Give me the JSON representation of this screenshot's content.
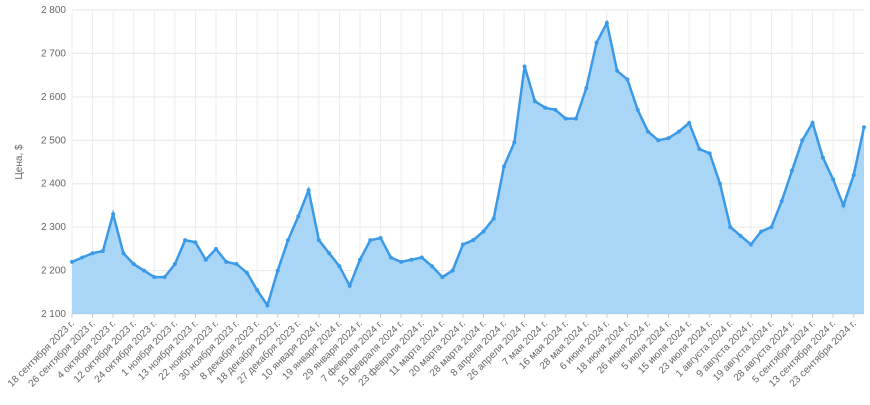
{
  "chart_data": {
    "type": "area",
    "y_label": "Цена, $",
    "color": "#3b9ae8",
    "fill_color": "#a9d5f6",
    "grid": true,
    "ylim": [
      2100,
      2800
    ],
    "yticks": [
      {
        "value": 2100,
        "label": "2 100"
      },
      {
        "value": 2200,
        "label": "2 200"
      },
      {
        "value": 2300,
        "label": "2 300"
      },
      {
        "value": 2400,
        "label": "2 400"
      },
      {
        "value": 2500,
        "label": "2 500"
      },
      {
        "value": 2600,
        "label": "2 600"
      },
      {
        "value": 2700,
        "label": "2 700"
      },
      {
        "value": 2800,
        "label": "2 800"
      }
    ],
    "categories": [
      "18 сентября 2023 г.",
      null,
      "26 сентября 2023 г.",
      null,
      "4 октября 2023 г.",
      null,
      "12 октября 2023 г.",
      null,
      "24 октября 2023 г.",
      null,
      "1 ноября 2023 г.",
      null,
      "13 ноября 2023 г.",
      null,
      "22 ноября 2023 г.",
      null,
      "30 ноября 2023 г.",
      null,
      "8 декабря 2023 г.",
      null,
      "18 декабря 2023 г.",
      null,
      "27 декабря 2023 г.",
      null,
      "10 января 2024 г.",
      null,
      "19 января 2024 г.",
      null,
      "29 января 2024 г.",
      null,
      "7 февраля 2024 г.",
      null,
      "15 февраля 2024 г.",
      null,
      "23 февраля 2024 г.",
      null,
      "11 марта 2024 г.",
      null,
      "20 марта 2024 г.",
      null,
      "28 марта 2024 г.",
      null,
      "8 апреля 2024 г.",
      null,
      "26 апреля 2024 г.",
      null,
      "7 мая 2024 г.",
      null,
      "16 мая 2024 г.",
      null,
      "28 мая 2024 г.",
      null,
      "6 июня 2024 г.",
      null,
      "18 июня 2024 г.",
      null,
      "26 июня 2024 г.",
      null,
      "5 июля 2024 г.",
      null,
      "15 июля 2024 г.",
      null,
      "23 июля 2024 г.",
      null,
      "1 августа 2024 г.",
      null,
      "9 августа 2024 г.",
      null,
      "19 августа 2024 г.",
      null,
      "28 августа 2024 г.",
      null,
      "5 сентября 2024 г.",
      null,
      "13 сентября 2024 г.",
      null,
      "23 сентября 2024 г.",
      null
    ],
    "values": [
      2220,
      2230,
      2240,
      2245,
      2330,
      2240,
      2215,
      2200,
      2185,
      2185,
      2215,
      2270,
      2265,
      2225,
      2250,
      2220,
      2215,
      2195,
      2155,
      2120,
      2200,
      2270,
      2325,
      2385,
      2270,
      2240,
      2210,
      2165,
      2225,
      2270,
      2275,
      2230,
      2220,
      2225,
      2230,
      2210,
      2185,
      2200,
      2260,
      2270,
      2290,
      2320,
      2440,
      2495,
      2670,
      2590,
      2575,
      2570,
      2550,
      2550,
      2620,
      2725,
      2770,
      2660,
      2640,
      2570,
      2520,
      2500,
      2505,
      2520,
      2540,
      2480,
      2470,
      2400,
      2300,
      2280,
      2260,
      2290,
      2300,
      2360,
      2430,
      2500,
      2540,
      2460,
      2410,
      2350,
      2420,
      2530
    ]
  }
}
